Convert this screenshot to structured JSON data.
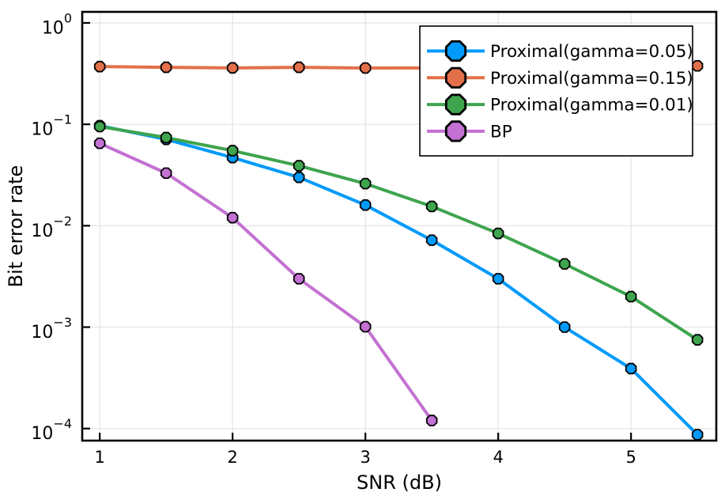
{
  "chart_data": {
    "type": "line",
    "title": "",
    "xlabel": "SNR (dB)",
    "ylabel": "Bit error rate",
    "x_scale": "linear",
    "y_scale": "log10",
    "xlim": [
      0.868,
      5.642
    ],
    "ylim": [
      7.6e-05,
      1.285
    ],
    "grid": true,
    "legend_position": "top-right",
    "x_ticks": [
      1,
      2,
      3,
      4,
      5
    ],
    "x_tick_labels": [
      "1",
      "2",
      "3",
      "4",
      "5"
    ],
    "y_ticks": [
      1,
      0.1,
      0.01,
      0.001,
      0.0001
    ],
    "y_tick_labels": [
      {
        "base": "10",
        "exp": "0"
      },
      {
        "base": "10",
        "exp": "-1"
      },
      {
        "base": "10",
        "exp": "-2"
      },
      {
        "base": "10",
        "exp": "-3"
      },
      {
        "base": "10",
        "exp": "-4"
      }
    ],
    "x": [
      1,
      1.5,
      2,
      2.5,
      3,
      3.5,
      4,
      4.5,
      5,
      5.5
    ],
    "series": [
      {
        "name": "Proximal(gamma=0.05)",
        "color": "#009AFA",
        "marker": "octagon",
        "marker_edge": "#000000",
        "values": [
          0.097,
          0.071,
          0.047,
          0.03,
          0.016,
          0.0072,
          0.003,
          0.001,
          0.00039,
          8.7e-05
        ]
      },
      {
        "name": "Proximal(gamma=0.15)",
        "color": "#E2704A",
        "marker": "octagon",
        "marker_edge": "#000000",
        "values": [
          0.371,
          0.365,
          0.36,
          0.365,
          0.359,
          0.36,
          0.363,
          0.367,
          0.372,
          0.377
        ]
      },
      {
        "name": "Proximal(gamma=0.01)",
        "color": "#3EA44E",
        "marker": "octagon",
        "marker_edge": "#000000",
        "values": [
          0.095,
          0.074,
          0.055,
          0.039,
          0.026,
          0.0155,
          0.0084,
          0.0042,
          0.002,
          0.00075
        ]
      },
      {
        "name": "BP",
        "color": "#C371D2",
        "marker": "octagon",
        "marker_edge": "#000000",
        "values": [
          0.065,
          0.033,
          0.012,
          0.003,
          0.00101,
          0.00012
        ]
      }
    ],
    "legend_labels": [
      "Proximal(gamma=0.05)",
      "Proximal(gamma=0.15)",
      "Proximal(gamma=0.01)",
      "BP"
    ]
  },
  "style": {
    "grid_color": "#e6e6e6",
    "frame_color": "#000000",
    "background": "#ffffff",
    "legend_background": "#ffffff",
    "legend_border": "#000000"
  }
}
